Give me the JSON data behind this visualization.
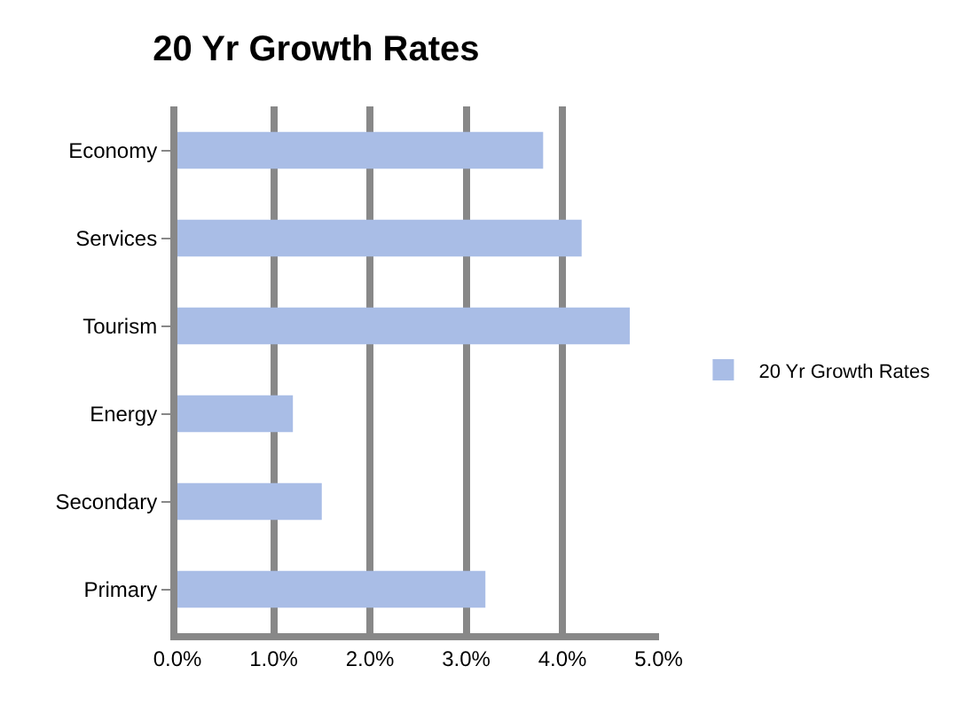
{
  "chart_data": {
    "type": "bar",
    "orientation": "horizontal",
    "title": "20 Yr Growth Rates",
    "categories": [
      "Economy",
      "Services",
      "Tourism",
      "Energy",
      "Secondary",
      "Primary"
    ],
    "series": [
      {
        "name": "20 Yr Growth Rates",
        "color": "#a9bde6",
        "values": [
          3.8,
          4.2,
          4.7,
          1.2,
          1.5,
          3.2
        ]
      }
    ],
    "xlim": [
      0,
      5
    ],
    "xticks": [
      {
        "value": 0,
        "label": "0.0%"
      },
      {
        "value": 1,
        "label": "1.0%"
      },
      {
        "value": 2,
        "label": "2.0%"
      },
      {
        "value": 3,
        "label": "3.0%"
      },
      {
        "value": 4,
        "label": "4.0%"
      },
      {
        "value": 5,
        "label": "5.0%"
      }
    ],
    "grid": "x",
    "legend": "right"
  }
}
